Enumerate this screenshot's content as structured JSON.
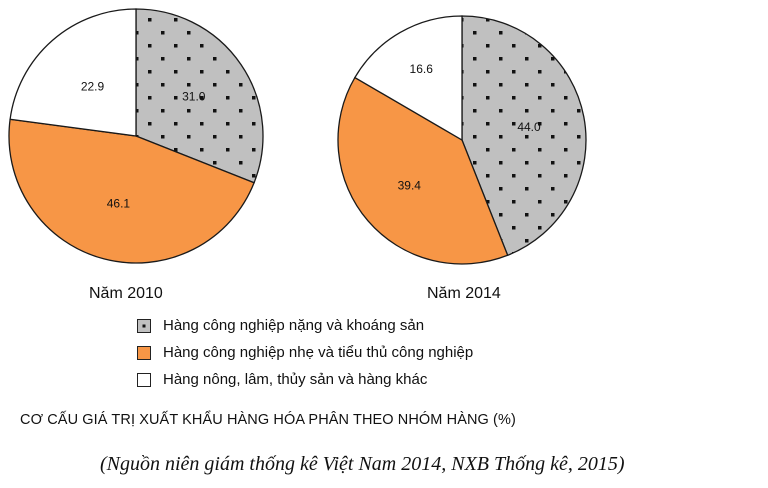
{
  "chart_data": {
    "type": "pie",
    "title": "CƠ CẤU GIÁ TRỊ XUẤT KHẨU HÀNG HÓA PHÂN THEO NHÓM HÀNG (%)",
    "source": "(Nguồn niên giám thống kê Việt Nam 2014, NXB Thống kê, 2015)",
    "categories": [
      "Hàng công nghiệp nặng và khoáng sản",
      "Hàng công nghiệp nhẹ và tiểu thủ công nghiệp",
      "Hàng nông, lâm, thủy sản và hàng khác"
    ],
    "colors": [
      "#c0c0c0",
      "#f79646",
      "#ffffff"
    ],
    "patterns": [
      "dots",
      "solid",
      "solid"
    ],
    "pies": [
      {
        "year_label": "Năm 2010",
        "values": [
          31.0,
          46.1,
          22.9
        ],
        "labels": [
          "31.0",
          "46.1",
          "22.9"
        ]
      },
      {
        "year_label": "Năm 2014",
        "values": [
          44.0,
          39.4,
          16.6
        ],
        "labels": [
          "44.0",
          "39.4",
          "16.6"
        ]
      }
    ],
    "legend_position": "bottom-center"
  }
}
